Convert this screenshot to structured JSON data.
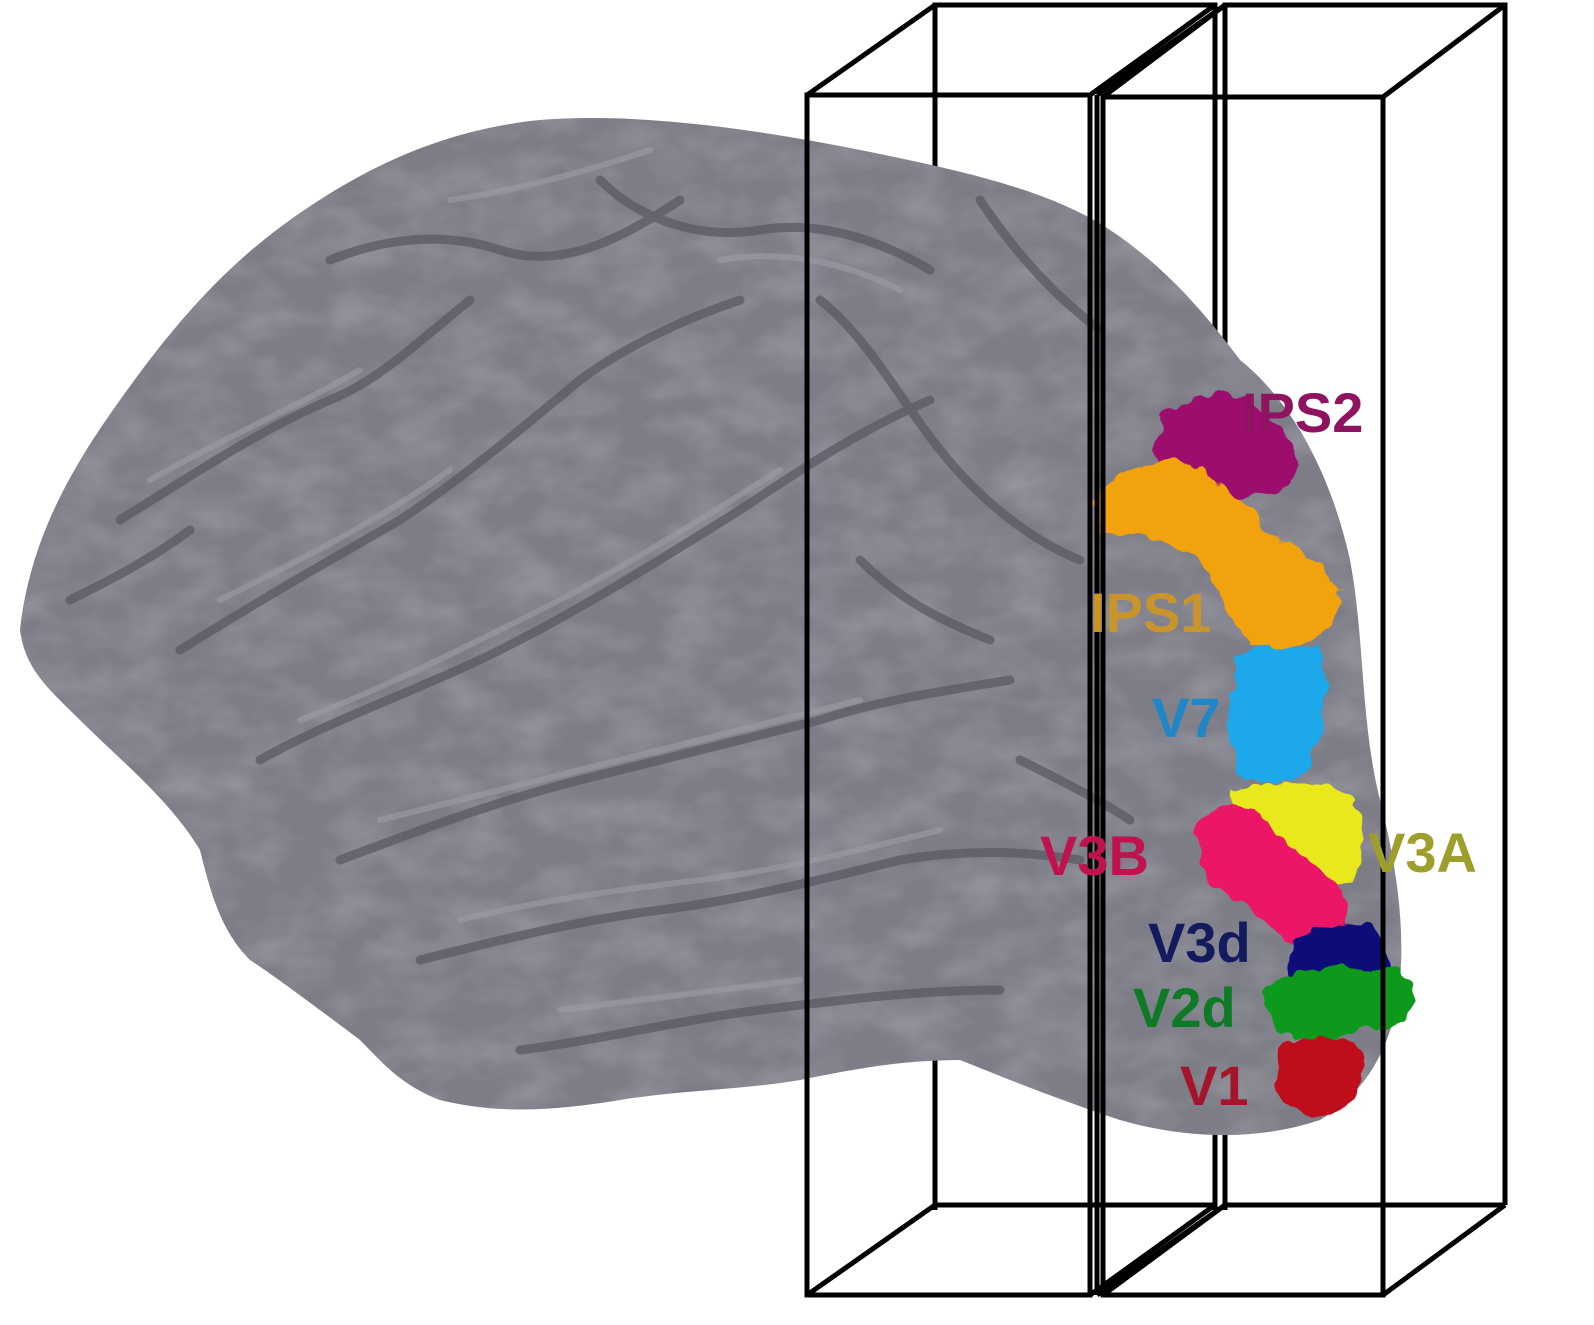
{
  "figure": {
    "background": "#ffffff",
    "brain_color": "#7d7d87",
    "brain_shadow": "#5f5f69",
    "brain_highlight": "#a3a3ad"
  },
  "regions": [
    {
      "id": "ips2",
      "label": "IPS2",
      "color": "#9c0f6e",
      "label_color": "#8e1360"
    },
    {
      "id": "ips1",
      "label": "IPS1",
      "color": "#f2a20f",
      "label_color": "#c9952a"
    },
    {
      "id": "v7",
      "label": "V7",
      "color": "#1aa8ea",
      "label_color": "#1f86c7"
    },
    {
      "id": "v3b",
      "label": "V3B",
      "color": "#ec1568",
      "label_color": "#c0124f"
    },
    {
      "id": "v3a",
      "label": "V3A",
      "color": "#e8e81a",
      "label_color": "#9e9e2a"
    },
    {
      "id": "v3d",
      "label": "V3d",
      "color": "#0d0f7a",
      "label_color": "#141a5e"
    },
    {
      "id": "v2d",
      "label": "V2d",
      "color": "#0a9a1e",
      "label_color": "#0e7a26"
    },
    {
      "id": "v1",
      "label": "V1",
      "color": "#c0101a",
      "label_color": "#a5142a"
    }
  ]
}
